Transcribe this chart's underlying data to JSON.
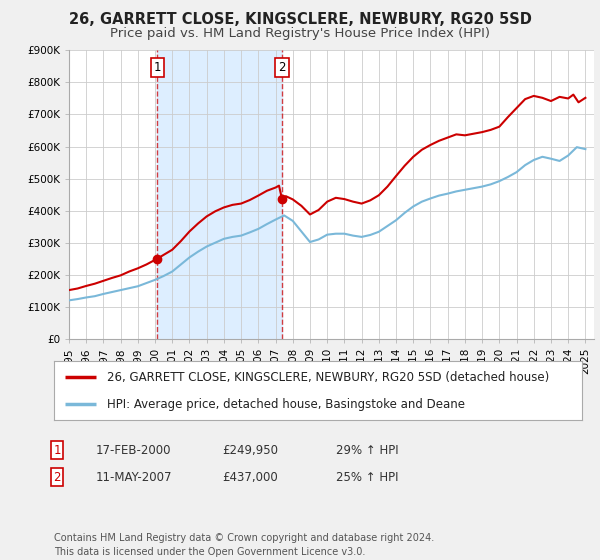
{
  "title": "26, GARRETT CLOSE, KINGSCLERE, NEWBURY, RG20 5SD",
  "subtitle": "Price paid vs. HM Land Registry's House Price Index (HPI)",
  "xlim_start": 1995.0,
  "xlim_end": 2025.5,
  "ylim_min": 0,
  "ylim_max": 900000,
  "yticks": [
    0,
    100000,
    200000,
    300000,
    400000,
    500000,
    600000,
    700000,
    800000,
    900000
  ],
  "ytick_labels": [
    "£0",
    "£100K",
    "£200K",
    "£300K",
    "£400K",
    "£500K",
    "£600K",
    "£700K",
    "£800K",
    "£900K"
  ],
  "xticks": [
    1995,
    1996,
    1997,
    1998,
    1999,
    2000,
    2001,
    2002,
    2003,
    2004,
    2005,
    2006,
    2007,
    2008,
    2009,
    2010,
    2011,
    2012,
    2013,
    2014,
    2015,
    2016,
    2017,
    2018,
    2019,
    2020,
    2021,
    2022,
    2023,
    2024,
    2025
  ],
  "hpi_color": "#7ab8d9",
  "price_color": "#cc0000",
  "sale1_x": 2000.13,
  "sale1_y": 249950,
  "sale2_x": 2007.37,
  "sale2_y": 437000,
  "vline1_x": 2000.13,
  "vline2_x": 2007.37,
  "shade_color": "#ddeeff",
  "background_color": "#f0f0f0",
  "plot_bg_color": "#ffffff",
  "grid_color": "#cccccc",
  "legend_label_red": "26, GARRETT CLOSE, KINGSCLERE, NEWBURY, RG20 5SD (detached house)",
  "legend_label_blue": "HPI: Average price, detached house, Basingstoke and Deane",
  "table_row1": [
    "1",
    "17-FEB-2000",
    "£249,950",
    "29% ↑ HPI"
  ],
  "table_row2": [
    "2",
    "11-MAY-2007",
    "£437,000",
    "25% ↑ HPI"
  ],
  "footer": "Contains HM Land Registry data © Crown copyright and database right 2024.\nThis data is licensed under the Open Government Licence v3.0.",
  "title_fontsize": 10.5,
  "subtitle_fontsize": 9.5,
  "tick_fontsize": 7.5,
  "legend_fontsize": 8.5,
  "table_fontsize": 8.5,
  "footer_fontsize": 7.0
}
